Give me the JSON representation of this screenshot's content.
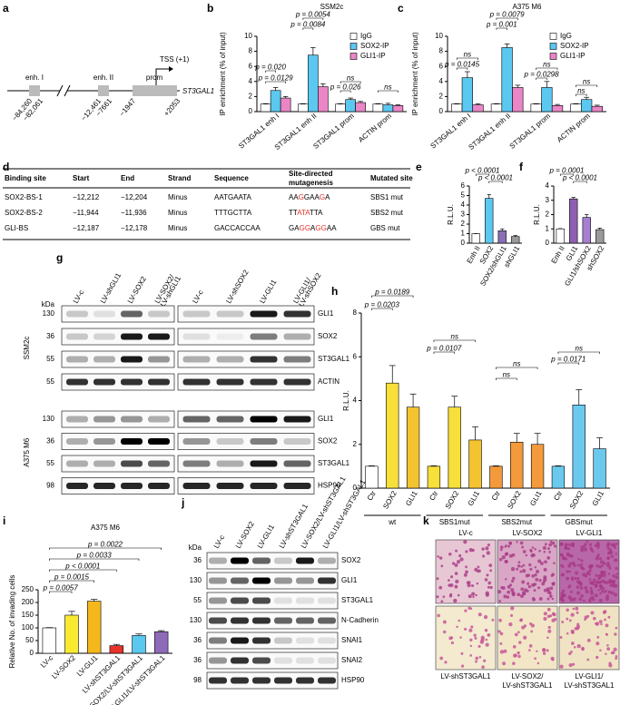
{
  "panel_labels": [
    "a",
    "b",
    "c",
    "d",
    "e",
    "f",
    "g",
    "h",
    "i",
    "j",
    "k"
  ],
  "diagram_a": {
    "regions": [
      "enh. I",
      "enh. II",
      "prom"
    ],
    "tss": "TSS (+1)",
    "gene": "ST3GAL1",
    "coordinates": [
      "−84,260",
      "−82,061",
      "−12,461",
      "−7661",
      "−1947",
      "+2053"
    ]
  },
  "chart_data": [
    {
      "type": "bar",
      "title": "SSM2c",
      "ylabel": "IP enrichment (% of input)",
      "categories": [
        "ST3GAL1 enh I",
        "ST3GAL1 enh II",
        "ST3GAL1 prom",
        "ACTIN prom"
      ],
      "series": [
        {
          "name": "IgG",
          "color": "#ffffff",
          "values": [
            1,
            1,
            1,
            1
          ],
          "errors": [
            0.05,
            0.05,
            0.05,
            0.05
          ]
        },
        {
          "name": "SOX2-IP",
          "color": "#5bc8f0",
          "values": [
            2.8,
            7.5,
            1.6,
            0.9
          ],
          "errors": [
            0.4,
            1.0,
            0.2,
            0.2
          ]
        },
        {
          "name": "GLI1-IP",
          "color": "#ea86c6",
          "values": [
            1.8,
            3.3,
            1.2,
            0.8
          ],
          "errors": [
            0.2,
            0.4,
            0.15,
            0.1
          ]
        }
      ],
      "ylim": [
        0,
        10
      ],
      "yticks": [
        0,
        2,
        4,
        6,
        8,
        10
      ],
      "legend": "upper right",
      "annotations": [
        "p = 0.020",
        "p = 0.0129",
        "p = 0.0054",
        "p = 0.0084",
        "ns",
        "p = 0.026",
        "ns"
      ]
    },
    {
      "type": "bar",
      "title": "A375 M6",
      "ylabel": "IP enrichment (% of input)",
      "categories": [
        "ST3GAL1 enh I",
        "ST3GAL1 enh II",
        "ST3GAL1 prom",
        "ACTIN prom"
      ],
      "series": [
        {
          "name": "IgG",
          "color": "#ffffff",
          "values": [
            1,
            1,
            1,
            1
          ],
          "errors": [
            0.05,
            0.05,
            0.05,
            0.05
          ]
        },
        {
          "name": "SOX2-IP",
          "color": "#5bc8f0",
          "values": [
            4.5,
            8.5,
            3.2,
            1.6
          ],
          "errors": [
            0.8,
            0.5,
            0.8,
            0.3
          ]
        },
        {
          "name": "GLI1-IP",
          "color": "#ea86c6",
          "values": [
            0.9,
            3.2,
            0.8,
            0.7
          ],
          "errors": [
            0.15,
            0.3,
            0.15,
            0.15
          ]
        }
      ],
      "ylim": [
        0,
        10
      ],
      "yticks": [
        0,
        2,
        4,
        6,
        8,
        10
      ],
      "legend": "upper right",
      "annotations": [
        "p = 0.0079",
        "p = 0.001",
        "ns",
        "p = 0.0145",
        "ns",
        "p = 0.0298",
        "ns",
        "ns"
      ]
    },
    {
      "type": "bar",
      "ylabel": "R.L.U.",
      "categories": [
        "Enh II",
        "SOX2",
        "SOX2/shGLI1",
        "shGLI1"
      ],
      "values": [
        1,
        4.7,
        1.3,
        0.7
      ],
      "errors": [
        0.02,
        0.4,
        0.2,
        0.1
      ],
      "colors": [
        "#ffffff",
        "#5bc8f0",
        "#8a6fb5",
        "#9a9a9a"
      ],
      "ylim": [
        0,
        6
      ],
      "yticks": [
        0,
        1,
        2,
        3,
        4,
        5,
        6
      ],
      "annotations": [
        "p < 0.0001",
        "p < 0.0001"
      ]
    },
    {
      "type": "bar",
      "ylabel": "R.L.U.",
      "categories": [
        "Enh II",
        "GLI1",
        "GLI1/shSOX2",
        "shSOX2"
      ],
      "values": [
        1,
        3.1,
        1.8,
        0.95
      ],
      "errors": [
        0.02,
        0.1,
        0.2,
        0.1
      ],
      "colors": [
        "#ffffff",
        "#8e5fb0",
        "#a77fd0",
        "#9a9a9a"
      ],
      "ylim": [
        0,
        4
      ],
      "yticks": [
        0,
        1,
        2,
        3,
        4
      ],
      "annotations": [
        "p = 0.0001",
        "p < 0.0001"
      ]
    },
    {
      "type": "bar",
      "ylabel": "R.L.U.",
      "categories": [
        "Ctr",
        "SOX2",
        "GLI1",
        "Ctr",
        "SOX2",
        "GLI1",
        "Ctr",
        "SOX2",
        "GLI1",
        "Ctr",
        "SOX2",
        "GLI1"
      ],
      "groups": [
        "wt",
        "SBS1mut",
        "SBS2mut",
        "GBSmut"
      ],
      "values": [
        1,
        4.8,
        3.7,
        1,
        3.7,
        2.2,
        1,
        2.1,
        2.0,
        1,
        3.8,
        1.8
      ],
      "errors": [
        0.02,
        0.8,
        0.6,
        0.02,
        0.5,
        0.6,
        0.02,
        0.4,
        0.5,
        0.02,
        0.7,
        0.5
      ],
      "colors": [
        "#ffffff",
        "#f7e03a",
        "#f4c430",
        "#f7e03a",
        "#f7e03a",
        "#f4c430",
        "#f39a3c",
        "#f39a3c",
        "#f39a3c",
        "#6cc9ee",
        "#6cc9ee",
        "#6cc9ee"
      ],
      "ylim": [
        0,
        8
      ],
      "yticks": [
        0,
        2,
        4,
        6,
        8
      ],
      "annotations": [
        "p = 0.0189",
        "p = 0.0203",
        "ns",
        "p = 0.0107",
        "ns",
        "ns",
        "ns",
        "p = 0.0171"
      ]
    },
    {
      "type": "bar",
      "title": "A375 M6",
      "ylabel": "Relative No. of invading cells",
      "categories": [
        "LV-c",
        "LV-SOX2",
        "LV-GLI1",
        "LV-shST3GAL1",
        "LV-SOX2/LV-shST3GAL1",
        "LV-GLI1/LV-shST3GAL1"
      ],
      "values": [
        100,
        150,
        205,
        30,
        70,
        85
      ],
      "errors": [
        1,
        15,
        7,
        5,
        6,
        4
      ],
      "colors": [
        "#ffffff",
        "#f7ea30",
        "#f5b81c",
        "#e8322a",
        "#5bc8f0",
        "#8e6bb8"
      ],
      "ylim": [
        0,
        250
      ],
      "yticks": [
        0,
        50,
        100,
        150,
        200,
        250
      ],
      "annotations": [
        "p = 0.0057",
        "p = 0.0015",
        "p < 0.0001",
        "p = 0.0033",
        "p = 0.0022"
      ]
    }
  ],
  "table_d": {
    "headers": [
      "Binding site",
      "Start",
      "End",
      "Strand",
      "Sequence",
      "Site-directed mutagenesis",
      "Mutated site"
    ],
    "rows": [
      [
        "SOX2-BS-1",
        "−12,212",
        "−12,204",
        "Minus",
        "AATGAATA",
        "AAGGAAGA",
        "SBS1 mut"
      ],
      [
        "SOX2-BS-2",
        "−11,944",
        "−11,936",
        "Minus",
        "TTTGCTTA",
        "TTATATTA",
        "SBS2 mut"
      ],
      [
        "GLI-BS",
        "−12,187",
        "−12,178",
        "Minus",
        "GACCACCAA",
        "GAGGAGGAA",
        "GBS mut"
      ]
    ]
  },
  "blot_g": {
    "kda": "kDa",
    "lanes": [
      "LV-c",
      "LV-shGLI1",
      "LV-SOX2",
      "LV-SOX2/ LV-shGLI1",
      "LV-c",
      "LV-shSOX2",
      "LV-GLI1",
      "LV-GLI1/ LV-shSOX2"
    ],
    "panels": [
      {
        "cell": "SSM2c",
        "markers": [
          130,
          36,
          55,
          55
        ],
        "proteins": [
          "GLI1",
          "SOX2",
          "ST3GAL1",
          "ACTIN"
        ]
      },
      {
        "cell": "A375 M6",
        "markers": [
          130,
          36,
          55,
          98
        ],
        "proteins": [
          "GLI1",
          "SOX2",
          "ST3GAL1",
          "HSP90"
        ]
      }
    ]
  },
  "blot_j": {
    "kda": "kDa",
    "lanes": [
      "LV-c",
      "LV-SOX2",
      "LV-GLI1",
      "LV-shST3GAL1",
      "LV-SOX2/LV-shST3GAL1",
      "LV-GLI1/LV-shST3GAL1"
    ],
    "markers": [
      36,
      130,
      55,
      130,
      36,
      36,
      98
    ],
    "proteins": [
      "SOX2",
      "GLI1",
      "ST3GAL1",
      "N-Cadherin",
      "SNAI1",
      "SNAI2",
      "HSP90"
    ]
  },
  "images_k": {
    "labels": [
      "LV-c",
      "LV-SOX2",
      "LV-GLI1",
      "LV-shST3GAL1",
      "LV-SOX2/ LV-shST3GAL1",
      "LV-GLI1/ LV-shST3GAL1"
    ]
  }
}
